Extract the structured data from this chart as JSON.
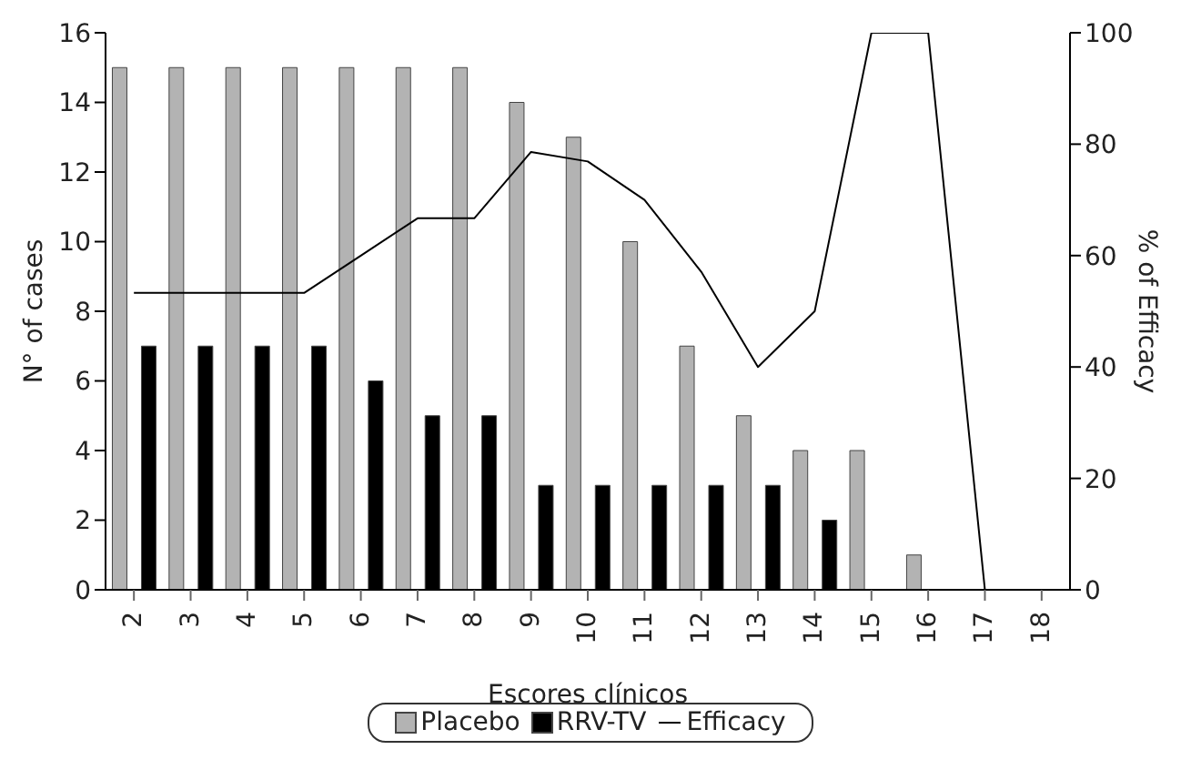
{
  "chart_data": {
    "type": "bar",
    "xlabel": "Escores clínicos",
    "ylabel": "N° of cases",
    "y2label": "% of Efficacy",
    "categories": [
      "2",
      "3",
      "4",
      "5",
      "6",
      "7",
      "8",
      "9",
      "10",
      "11",
      "12",
      "13",
      "14",
      "15",
      "16",
      "17",
      "18"
    ],
    "series": [
      {
        "name": "Placebo",
        "color": "#b3b3b3",
        "values": [
          15,
          15,
          15,
          15,
          15,
          15,
          15,
          14,
          13,
          10,
          7,
          5,
          4,
          4,
          1,
          0,
          0
        ]
      },
      {
        "name": "RRV-TV",
        "color": "#000000",
        "values": [
          7,
          7,
          7,
          7,
          6,
          5,
          5,
          3,
          3,
          3,
          3,
          3,
          2,
          0,
          0,
          0,
          0
        ]
      },
      {
        "name": "Efficacy",
        "type": "line",
        "axis": "y2",
        "color": "#000000",
        "values": [
          53.3,
          53.3,
          53.3,
          53.3,
          60,
          66.7,
          66.7,
          78.6,
          76.9,
          70,
          57.1,
          40,
          50,
          100,
          100,
          0,
          0
        ]
      }
    ],
    "ylim": [
      0,
      16
    ],
    "yticks": [
      0,
      2,
      4,
      6,
      8,
      10,
      12,
      14,
      16
    ],
    "y2lim": [
      0,
      100
    ],
    "y2ticks": [
      0,
      20,
      40,
      60,
      80,
      100
    ],
    "grid": false,
    "legend": "bottom",
    "marker": "none"
  }
}
